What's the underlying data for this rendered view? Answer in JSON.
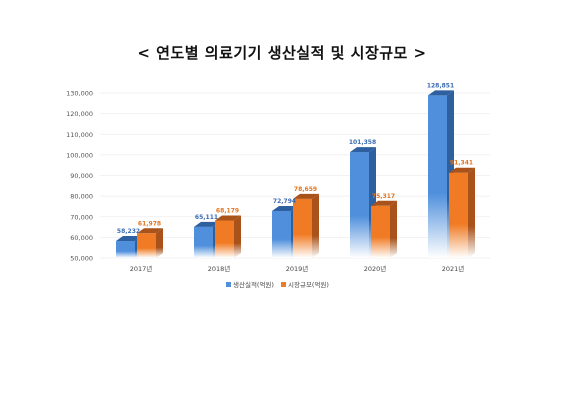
{
  "title": "< 연도별 의료기기 생산실적 및 시장규모 >",
  "chart_data": {
    "type": "bar",
    "title": "< 연도별 의료기기 생산실적 및 시장규모 >",
    "categories": [
      "2017년",
      "2018년",
      "2019년",
      "2020년",
      "2021년"
    ],
    "series": [
      {
        "name": "생산실적(억원)",
        "values": [
          58232,
          65111,
          72794,
          101358,
          128851
        ],
        "labels": [
          "58,232",
          "65,111",
          "72,794",
          "101,358",
          "128,851"
        ],
        "color": "#4f8fdc",
        "dark_color": "#2e5f9e",
        "label_color": "#3b6cb3"
      },
      {
        "name": "시장규모(억원)",
        "values": [
          61978,
          68179,
          78659,
          75317,
          91341
        ],
        "labels": [
          "61,978",
          "68,179",
          "78,659",
          "75,317",
          "91,341"
        ],
        "color": "#f07b24",
        "dark_color": "#a9521a",
        "label_color": "#e0741f"
      }
    ],
    "ylim": [
      50000,
      130000
    ],
    "yticks": [
      50000,
      60000,
      70000,
      80000,
      90000,
      100000,
      110000,
      120000,
      130000
    ],
    "ytick_labels": [
      "50,000",
      "60,000",
      "70,000",
      "80,000",
      "90,000",
      "100,000",
      "110,000",
      "120,000",
      "130,000"
    ],
    "xlabel": "",
    "ylabel": "",
    "grid": true,
    "style": "3d",
    "legend_position": "bottom"
  }
}
